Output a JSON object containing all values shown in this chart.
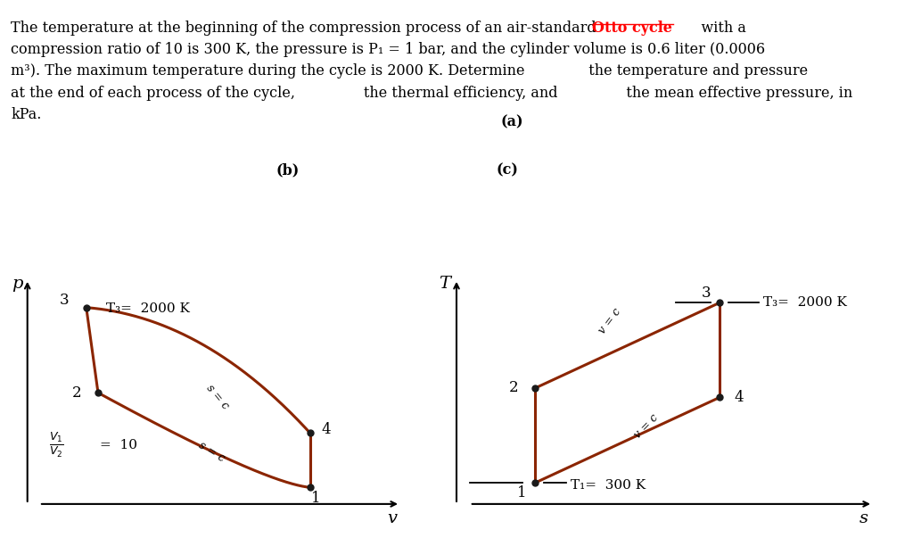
{
  "bg_color": "#ffffff",
  "text_color": "#000000",
  "curve_color": "#8B2500",
  "dot_color": "#1a1a1a",
  "otto_color": "#ff0000",
  "left_xlabel": "v",
  "left_ylabel": "p",
  "right_xlabel": "s",
  "right_ylabel": "T",
  "left_T3_label": "T₃=  2000 K",
  "right_T3_label": "T₃=  2000 K",
  "right_T1_label": "T₁=  300 K",
  "left_s_eq_c_upper": "s = c",
  "left_s_eq_c_lower": "s = c",
  "right_v_eq_c_upper": "v = c",
  "right_v_eq_c_lower": "v = c",
  "point_labels": [
    "1",
    "2",
    "3",
    "4"
  ],
  "fontsize": 11.5,
  "family": "serif"
}
